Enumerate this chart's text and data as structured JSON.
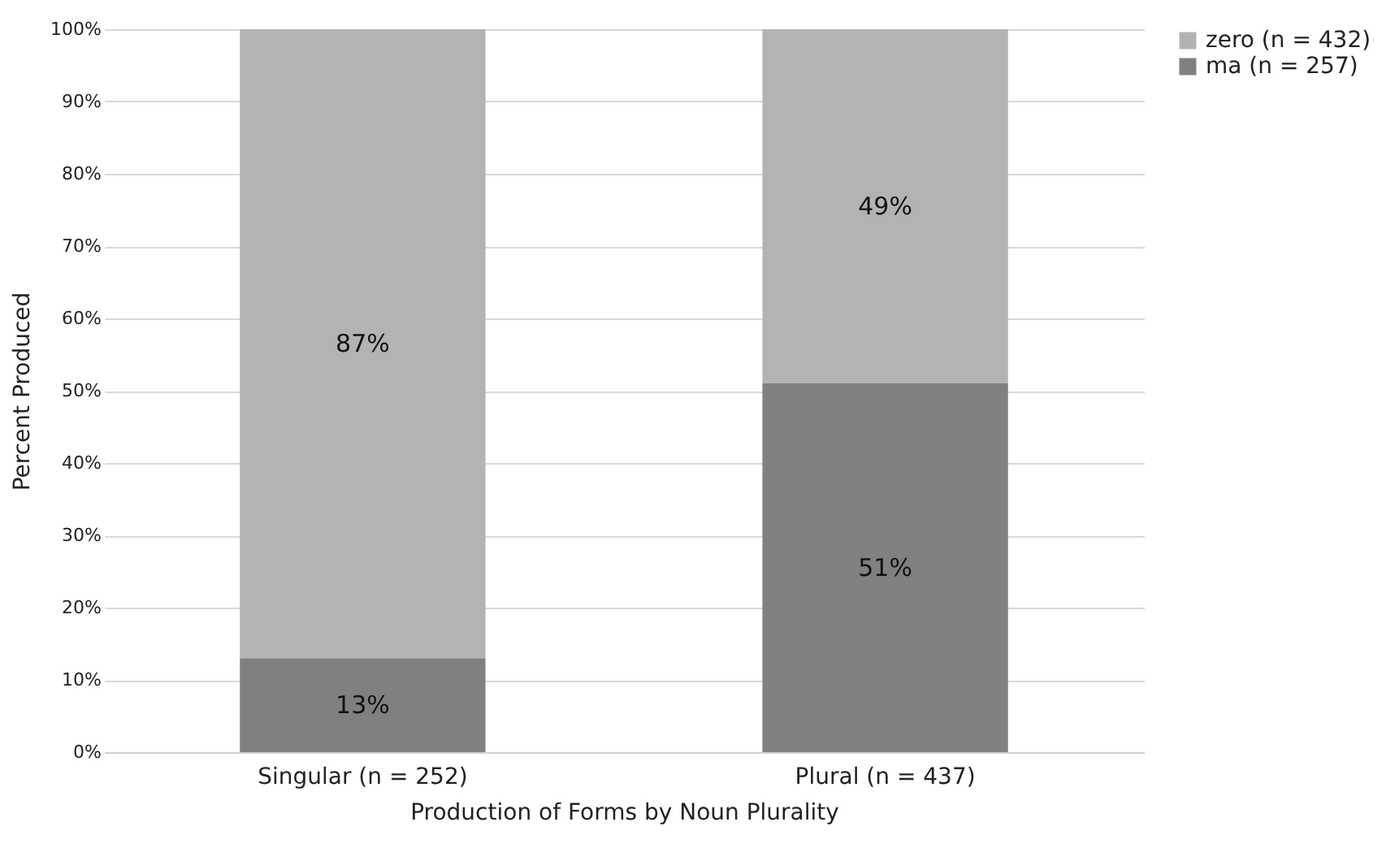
{
  "chart_data": {
    "type": "bar",
    "stacked": true,
    "xlabel": "Production of Forms by Noun Plurality",
    "ylabel": "Percent Produced",
    "categories": [
      "Singular (n = 252)",
      "Plural (n = 437)"
    ],
    "series": [
      {
        "name": "ma (n = 257)",
        "color": "#808080",
        "values": [
          13,
          51
        ],
        "value_labels": [
          "13%",
          "51%"
        ]
      },
      {
        "name": "zero (n = 432)",
        "color": "#b3b3b3",
        "values": [
          87,
          49
        ],
        "value_labels": [
          "87%",
          "49%"
        ]
      }
    ],
    "ylim": [
      0,
      100
    ],
    "yticks": [
      {
        "value": 0,
        "label": "0%"
      },
      {
        "value": 10,
        "label": "10%"
      },
      {
        "value": 20,
        "label": "20%"
      },
      {
        "value": 30,
        "label": "30%"
      },
      {
        "value": 40,
        "label": "40%"
      },
      {
        "value": 50,
        "label": "50%"
      },
      {
        "value": 60,
        "label": "60%"
      },
      {
        "value": 70,
        "label": "70%"
      },
      {
        "value": 80,
        "label": "80%"
      },
      {
        "value": 90,
        "label": "90%"
      },
      {
        "value": 100,
        "label": "100%"
      }
    ],
    "grid": "y",
    "legend": "right"
  }
}
